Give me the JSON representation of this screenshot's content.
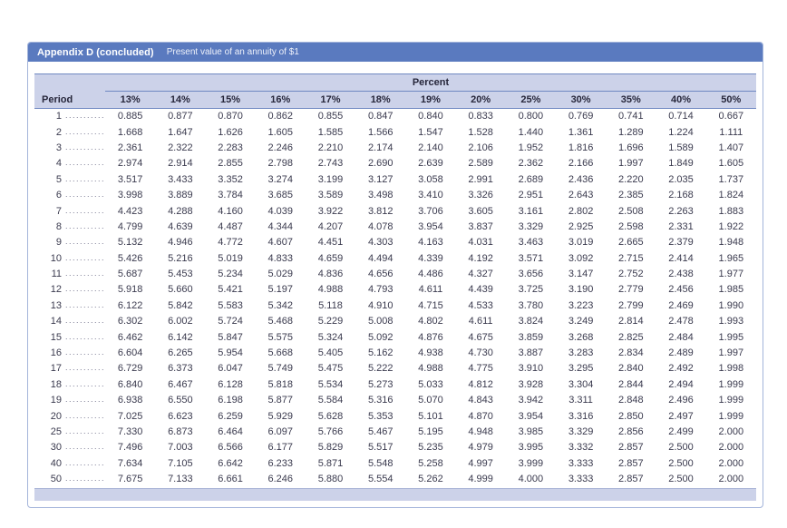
{
  "header": {
    "title": "Appendix D (concluded)",
    "subtitle": "Present value of an annuity of $1"
  },
  "table": {
    "group_header": "Percent",
    "period_label": "Period",
    "leader_dots": "......................",
    "rate_headers": [
      "13%",
      "14%",
      "15%",
      "16%",
      "17%",
      "18%",
      "19%",
      "20%",
      "25%",
      "30%",
      "35%",
      "40%",
      "50%"
    ],
    "rows": [
      {
        "period": "1",
        "values": [
          "0.885",
          "0.877",
          "0.870",
          "0.862",
          "0.855",
          "0.847",
          "0.840",
          "0.833",
          "0.800",
          "0.769",
          "0.741",
          "0.714",
          "0.667"
        ]
      },
      {
        "period": "2",
        "values": [
          "1.668",
          "1.647",
          "1.626",
          "1.605",
          "1.585",
          "1.566",
          "1.547",
          "1.528",
          "1.440",
          "1.361",
          "1.289",
          "1.224",
          "1.111"
        ]
      },
      {
        "period": "3",
        "values": [
          "2.361",
          "2.322",
          "2.283",
          "2.246",
          "2.210",
          "2.174",
          "2.140",
          "2.106",
          "1.952",
          "1.816",
          "1.696",
          "1.589",
          "1.407"
        ]
      },
      {
        "period": "4",
        "values": [
          "2.974",
          "2.914",
          "2.855",
          "2.798",
          "2.743",
          "2.690",
          "2.639",
          "2.589",
          "2.362",
          "2.166",
          "1.997",
          "1.849",
          "1.605"
        ]
      },
      {
        "period": "5",
        "values": [
          "3.517",
          "3.433",
          "3.352",
          "3.274",
          "3.199",
          "3.127",
          "3.058",
          "2.991",
          "2.689",
          "2.436",
          "2.220",
          "2.035",
          "1.737"
        ]
      },
      {
        "period": "6",
        "values": [
          "3.998",
          "3.889",
          "3.784",
          "3.685",
          "3.589",
          "3.498",
          "3.410",
          "3.326",
          "2.951",
          "2.643",
          "2.385",
          "2.168",
          "1.824"
        ]
      },
      {
        "period": "7",
        "values": [
          "4.423",
          "4.288",
          "4.160",
          "4.039",
          "3.922",
          "3.812",
          "3.706",
          "3.605",
          "3.161",
          "2.802",
          "2.508",
          "2.263",
          "1.883"
        ]
      },
      {
        "period": "8",
        "values": [
          "4.799",
          "4.639",
          "4.487",
          "4.344",
          "4.207",
          "4.078",
          "3.954",
          "3.837",
          "3.329",
          "2.925",
          "2.598",
          "2.331",
          "1.922"
        ]
      },
      {
        "period": "9",
        "values": [
          "5.132",
          "4.946",
          "4.772",
          "4.607",
          "4.451",
          "4.303",
          "4.163",
          "4.031",
          "3.463",
          "3.019",
          "2.665",
          "2.379",
          "1.948"
        ]
      },
      {
        "period": "10",
        "values": [
          "5.426",
          "5.216",
          "5.019",
          "4.833",
          "4.659",
          "4.494",
          "4.339",
          "4.192",
          "3.571",
          "3.092",
          "2.715",
          "2.414",
          "1.965"
        ]
      },
      {
        "period": "11",
        "values": [
          "5.687",
          "5.453",
          "5.234",
          "5.029",
          "4.836",
          "4.656",
          "4.486",
          "4.327",
          "3.656",
          "3.147",
          "2.752",
          "2.438",
          "1.977"
        ]
      },
      {
        "period": "12",
        "values": [
          "5.918",
          "5.660",
          "5.421",
          "5.197",
          "4.988",
          "4.793",
          "4.611",
          "4.439",
          "3.725",
          "3.190",
          "2.779",
          "2.456",
          "1.985"
        ]
      },
      {
        "period": "13",
        "values": [
          "6.122",
          "5.842",
          "5.583",
          "5.342",
          "5.118",
          "4.910",
          "4.715",
          "4.533",
          "3.780",
          "3.223",
          "2.799",
          "2.469",
          "1.990"
        ]
      },
      {
        "period": "14",
        "values": [
          "6.302",
          "6.002",
          "5.724",
          "5.468",
          "5.229",
          "5.008",
          "4.802",
          "4.611",
          "3.824",
          "3.249",
          "2.814",
          "2.478",
          "1.993"
        ]
      },
      {
        "period": "15",
        "values": [
          "6.462",
          "6.142",
          "5.847",
          "5.575",
          "5.324",
          "5.092",
          "4.876",
          "4.675",
          "3.859",
          "3.268",
          "2.825",
          "2.484",
          "1.995"
        ]
      },
      {
        "period": "16",
        "values": [
          "6.604",
          "6.265",
          "5.954",
          "5.668",
          "5.405",
          "5.162",
          "4.938",
          "4.730",
          "3.887",
          "3.283",
          "2.834",
          "2.489",
          "1.997"
        ]
      },
      {
        "period": "17",
        "values": [
          "6.729",
          "6.373",
          "6.047",
          "5.749",
          "5.475",
          "5.222",
          "4.988",
          "4.775",
          "3.910",
          "3.295",
          "2.840",
          "2.492",
          "1.998"
        ]
      },
      {
        "period": "18",
        "values": [
          "6.840",
          "6.467",
          "6.128",
          "5.818",
          "5.534",
          "5.273",
          "5.033",
          "4.812",
          "3.928",
          "3.304",
          "2.844",
          "2.494",
          "1.999"
        ]
      },
      {
        "period": "19",
        "values": [
          "6.938",
          "6.550",
          "6.198",
          "5.877",
          "5.584",
          "5.316",
          "5.070",
          "4.843",
          "3.942",
          "3.311",
          "2.848",
          "2.496",
          "1.999"
        ]
      },
      {
        "period": "20",
        "values": [
          "7.025",
          "6.623",
          "6.259",
          "5.929",
          "5.628",
          "5.353",
          "5.101",
          "4.870",
          "3.954",
          "3.316",
          "2.850",
          "2.497",
          "1.999"
        ]
      },
      {
        "period": "25",
        "values": [
          "7.330",
          "6.873",
          "6.464",
          "6.097",
          "5.766",
          "5.467",
          "5.195",
          "4.948",
          "3.985",
          "3.329",
          "2.856",
          "2.499",
          "2.000"
        ]
      },
      {
        "period": "30",
        "values": [
          "7.496",
          "7.003",
          "6.566",
          "6.177",
          "5.829",
          "5.517",
          "5.235",
          "4.979",
          "3.995",
          "3.332",
          "2.857",
          "2.500",
          "2.000"
        ]
      },
      {
        "period": "40",
        "values": [
          "7.634",
          "7.105",
          "6.642",
          "6.233",
          "5.871",
          "5.548",
          "5.258",
          "4.997",
          "3.999",
          "3.333",
          "2.857",
          "2.500",
          "2.000"
        ]
      },
      {
        "period": "50",
        "values": [
          "7.675",
          "7.133",
          "6.661",
          "6.246",
          "5.880",
          "5.554",
          "5.262",
          "4.999",
          "4.000",
          "3.333",
          "2.857",
          "2.500",
          "2.000"
        ]
      }
    ]
  },
  "colors": {
    "header_bar": "#5a7abf",
    "table_header_band": "#ccd2e9",
    "rule_line": "#7089c2",
    "body_text": "#3a3a4e",
    "card_border": "#a3b4da"
  }
}
